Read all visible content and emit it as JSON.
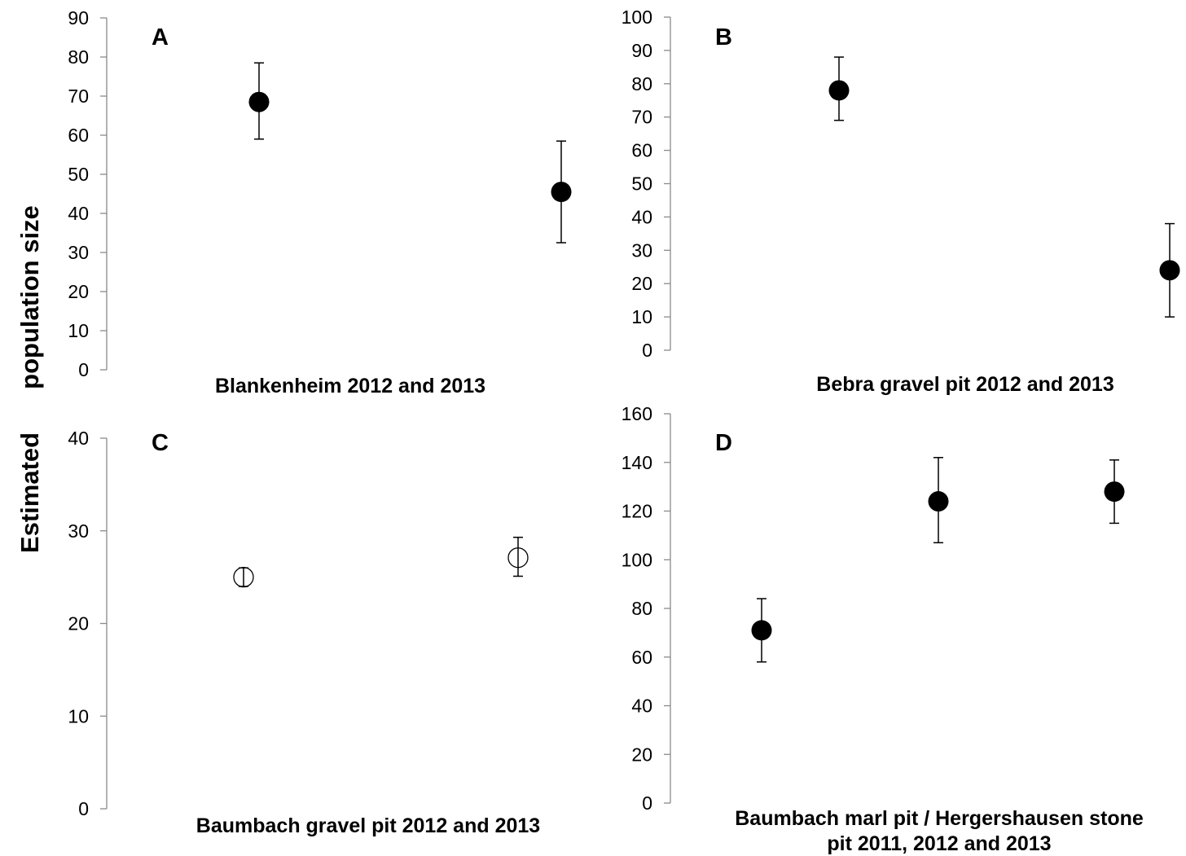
{
  "figure": {
    "ylabel_top": "population size",
    "ylabel_bottom": "Estimated"
  },
  "chart_data": [
    {
      "type": "scatter",
      "panel": "A",
      "xlabel": [
        "Blankenheim 2012 and 2013"
      ],
      "ylim": [
        0,
        90
      ],
      "yticks": [
        0,
        10,
        20,
        30,
        40,
        50,
        60,
        70,
        80,
        90
      ],
      "points": [
        {
          "x": 1,
          "y": 68.5,
          "err_low": 59,
          "err_high": 78.5,
          "filled": true
        },
        {
          "x": 2,
          "y": 45.5,
          "err_low": 32.5,
          "err_high": 58.5,
          "filled": true
        }
      ]
    },
    {
      "type": "scatter",
      "panel": "B",
      "xlabel": [
        "Bebra gravel pit 2012 and 2013"
      ],
      "ylim": [
        0,
        100
      ],
      "yticks": [
        0,
        10,
        20,
        30,
        40,
        50,
        60,
        70,
        80,
        90,
        100
      ],
      "points": [
        {
          "x": 1,
          "y": 78,
          "err_low": 69,
          "err_high": 88,
          "filled": true
        },
        {
          "x": 2,
          "y": 24,
          "err_low": 10,
          "err_high": 38,
          "filled": true
        }
      ]
    },
    {
      "type": "scatter",
      "panel": "C",
      "xlabel": [
        "Baumbach gravel pit 2012 and 2013"
      ],
      "ylim": [
        0,
        40
      ],
      "yticks": [
        0,
        10,
        20,
        30,
        40
      ],
      "points": [
        {
          "x": 1,
          "y": 25,
          "err_low": 24,
          "err_high": 26,
          "filled": false
        },
        {
          "x": 2,
          "y": 27.1,
          "err_low": 25.1,
          "err_high": 29.3,
          "filled": false
        }
      ]
    },
    {
      "type": "scatter",
      "panel": "D",
      "xlabel": [
        "Baumbach marl pit / Hergershausen stone",
        "pit  2011, 2012 and 2013"
      ],
      "ylim": [
        0,
        160
      ],
      "yticks": [
        0,
        20,
        40,
        60,
        80,
        100,
        120,
        140,
        160
      ],
      "points": [
        {
          "x": 1,
          "y": 71,
          "err_low": 58,
          "err_high": 84,
          "filled": true
        },
        {
          "x": 2,
          "y": 124,
          "err_low": 107,
          "err_high": 142,
          "filled": true
        },
        {
          "x": 3,
          "y": 128,
          "err_low": 115,
          "err_high": 141,
          "filled": true
        }
      ]
    }
  ]
}
